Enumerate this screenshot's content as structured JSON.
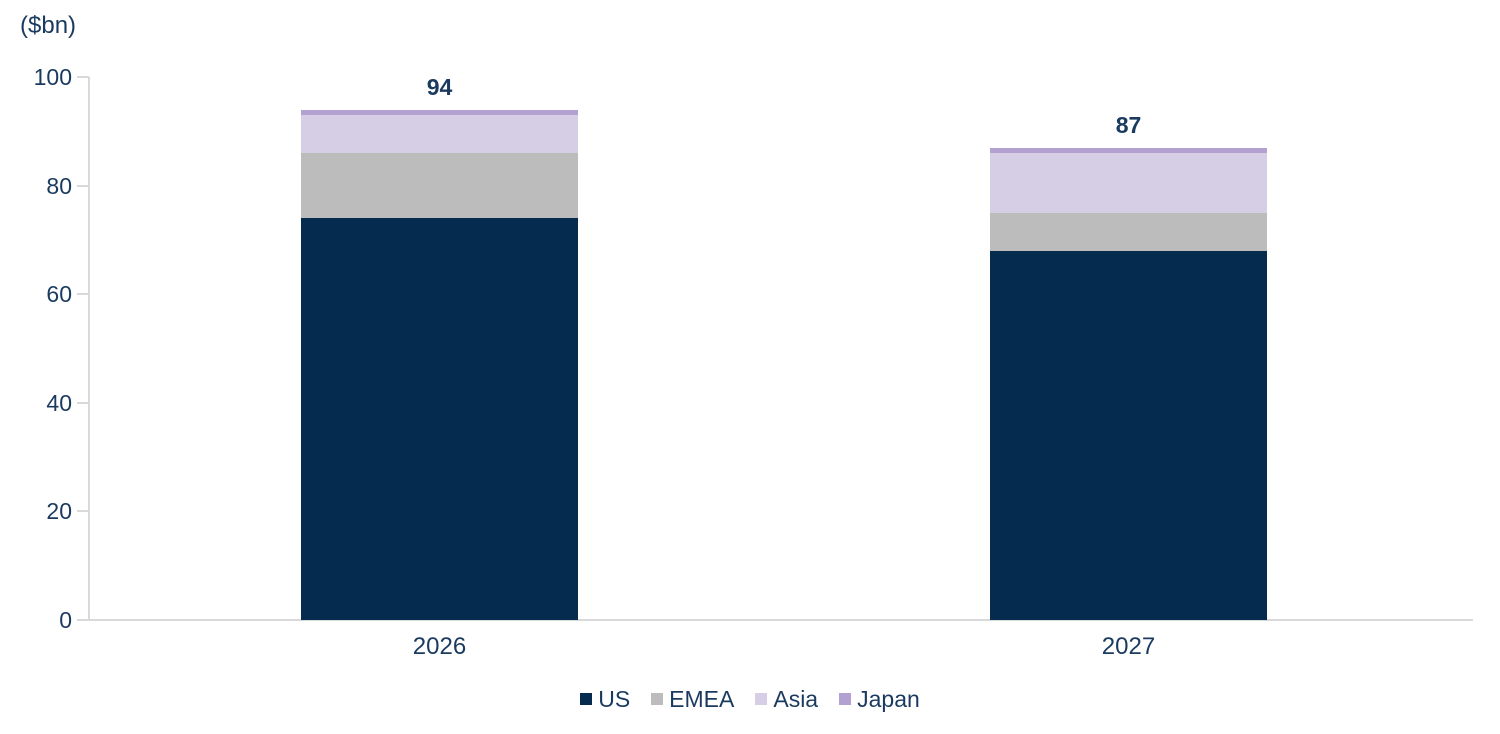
{
  "chart_data": {
    "type": "bar",
    "stacked": true,
    "title": "",
    "unit_label": "($bn)",
    "categories": [
      "2026",
      "2027"
    ],
    "series": [
      {
        "name": "US",
        "color": "#052c4f",
        "values": [
          74,
          68
        ]
      },
      {
        "name": "EMEA",
        "color": "#bcbcbc",
        "values": [
          12,
          7
        ]
      },
      {
        "name": "Asia",
        "color": "#d5cee4",
        "values": [
          7,
          11
        ]
      },
      {
        "name": "Japan",
        "color": "#b2a1d1",
        "values": [
          1,
          1
        ]
      }
    ],
    "totals": [
      "94",
      "87"
    ],
    "y_axis": {
      "min": 0,
      "max": 100,
      "tick_step": 20,
      "ticks": [
        0,
        20,
        40,
        60,
        80,
        100
      ]
    },
    "legend_position": "bottom",
    "grid": false
  },
  "colors": {
    "text": "#1a3a5f",
    "axis_line": "#d9d9d9"
  }
}
